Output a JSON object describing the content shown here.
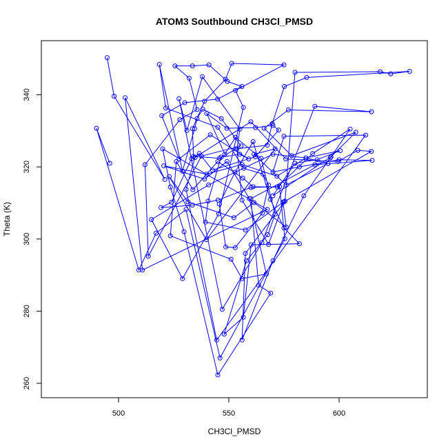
{
  "chart_data": {
    "type": "line",
    "title": "ATOM3 Southbound CH3Cl_PMSD",
    "xlabel": "CH3Cl_PMSD",
    "ylabel": "Theta (K)",
    "xlim": [
      465,
      640
    ],
    "ylim": [
      256,
      355
    ],
    "xticks": [
      500,
      550,
      600
    ],
    "yticks": [
      260,
      280,
      300,
      320,
      340
    ],
    "grid": false,
    "line_color": "#0000ff",
    "marker": "open-circle",
    "series": [
      {
        "values": [
          [
            494.8,
            350.3
          ],
          [
            498.0,
            339.6
          ],
          [
            521.0,
            316.5
          ],
          [
            503.0,
            339.2
          ],
          [
            510.8,
            291.4
          ],
          [
            567.4,
            308.2
          ],
          [
            520.0,
            325.0
          ],
          [
            523.5,
            314.4
          ],
          [
            529.7,
            302.0
          ],
          [
            545.0,
            262.3
          ],
          [
            569.0,
            285.0
          ],
          [
            563.5,
            287.2
          ],
          [
            560.0,
            311.2
          ],
          [
            589.0,
            320.6
          ],
          [
            615.0,
            321.8
          ],
          [
            600.0,
            322.0
          ],
          [
            582.0,
            320.0
          ],
          [
            570.0,
            318.6
          ],
          [
            575.0,
            328.5
          ],
          [
            612.0,
            328.8
          ],
          [
            544.5,
            272.0
          ],
          [
            530.6,
            313.8
          ],
          [
            534.7,
            322.6
          ],
          [
            560.0,
            332.5
          ],
          [
            575.8,
            322.2
          ],
          [
            599.5,
            321.5
          ],
          [
            608.5,
            324.6
          ],
          [
            614.6,
            324.3
          ],
          [
            575.0,
            310.3
          ],
          [
            568.0,
            298.5
          ],
          [
            556.0,
            310.8
          ],
          [
            553.7,
            324.9
          ],
          [
            555.0,
            330.5
          ],
          [
            538.0,
            345.0
          ],
          [
            531.0,
            330.1
          ],
          [
            527.4,
            338.9
          ],
          [
            547.0,
            280.5
          ],
          [
            565.0,
            299.0
          ],
          [
            589.0,
            336.8
          ],
          [
            614.7,
            335.3
          ],
          [
            577.0,
            335.8
          ],
          [
            566.0,
            330.7
          ],
          [
            578.5,
            323.1
          ],
          [
            607.6,
            329.6
          ],
          [
            596.3,
            322.8
          ],
          [
            570.0,
            312.0
          ],
          [
            580.0,
            321.0
          ],
          [
            590.0,
            322.0
          ],
          [
            600.5,
            324.5
          ],
          [
            585.0,
            322.5
          ],
          [
            570.0,
            323.5
          ],
          [
            540.8,
            315.0
          ],
          [
            514.9,
            305.4
          ],
          [
            529.0,
            289.0
          ],
          [
            545.4,
            307.0
          ],
          [
            556.6,
            336.5
          ],
          [
            553.0,
            341.2
          ],
          [
            575.0,
            348.3
          ],
          [
            551.3,
            348.7
          ],
          [
            548.5,
            344.3
          ],
          [
            539.0,
            338.2
          ],
          [
            533.5,
            330.6
          ],
          [
            534.0,
            322.9
          ],
          [
            545.8,
            322.4
          ],
          [
            553.2,
            325.0
          ],
          [
            567.4,
            326.0
          ],
          [
            569.7,
            332.0
          ],
          [
            575.2,
            342.3
          ],
          [
            585.3,
            344.8
          ],
          [
            632.0,
            346.5
          ],
          [
            623.4,
            345.8
          ],
          [
            618.6,
            346.4
          ],
          [
            580.0,
            346.2
          ],
          [
            575.5,
            310.5
          ],
          [
            557.5,
            296.0
          ],
          [
            556.0,
            272.0
          ],
          [
            570.0,
            294.0
          ],
          [
            584.0,
            312.0
          ],
          [
            596.0,
            322.5
          ],
          [
            605.0,
            330.5
          ],
          [
            588.0,
            323.7
          ],
          [
            572.0,
            314.4
          ],
          [
            561.0,
            314.5
          ],
          [
            556.3,
            316.9
          ],
          [
            545.0,
            321.5
          ],
          [
            533.7,
            313.7
          ],
          [
            526.2,
            321.5
          ],
          [
            523.5,
            300.9
          ],
          [
            551.0,
            294.4
          ],
          [
            556.0,
            289.0
          ],
          [
            567.0,
            290.3
          ],
          [
            559.3,
            311.2
          ],
          [
            549.2,
            321.5
          ],
          [
            539.0,
            316.6
          ],
          [
            520.5,
            320.3
          ],
          [
            540.0,
            318.0
          ],
          [
            556.0,
            320.7
          ],
          [
            571.8,
            317.4
          ],
          [
            585.0,
            322.5
          ],
          [
            595.0,
            320.9
          ],
          [
            576.0,
            315.0
          ],
          [
            561.4,
            323.5
          ],
          [
            571.0,
            325.0
          ],
          [
            539.8,
            299.8
          ],
          [
            523.0,
            317.3
          ],
          [
            531.5,
            310.3
          ],
          [
            552.3,
            305.9
          ],
          [
            561.4,
            310.1
          ],
          [
            576.0,
            303.3
          ],
          [
            574.6,
            310.2
          ],
          [
            557.5,
            302.5
          ],
          [
            539.4,
            304.7
          ],
          [
            540.6,
            310.5
          ],
          [
            546.5,
            322.7
          ],
          [
            555.0,
            323.5
          ],
          [
            559.0,
            322.2
          ],
          [
            541.6,
            328.9
          ],
          [
            527.4,
            322.2
          ],
          [
            519.6,
            334.2
          ],
          [
            530.0,
            337.8
          ],
          [
            544.9,
            338.8
          ],
          [
            555.9,
            342.3
          ],
          [
            549.3,
            343.7
          ],
          [
            541.0,
            348.3
          ],
          [
            533.5,
            348.0
          ],
          [
            525.6,
            348.0
          ],
          [
            532.0,
            344.6
          ],
          [
            535.6,
            335.9
          ],
          [
            527.8,
            333.1
          ],
          [
            512.0,
            320.6
          ],
          [
            513.5,
            295.2
          ],
          [
            537.6,
            323.0
          ],
          [
            555.5,
            325.8
          ],
          [
            546.6,
            333.4
          ],
          [
            538.2,
            336.0
          ],
          [
            535.6,
            333.4
          ],
          [
            534.5,
            330.6
          ],
          [
            529.0,
            318.8
          ],
          [
            518.5,
            348.4
          ],
          [
            521.4,
            336.3
          ],
          [
            545.0,
            331.0
          ],
          [
            556.8,
            319.6
          ],
          [
            565.5,
            318.0
          ],
          [
            568.0,
            315.0
          ],
          [
            565.2,
            307.2
          ],
          [
            552.9,
            297.6
          ],
          [
            548.6,
            297.8
          ],
          [
            545.7,
            309.7
          ],
          [
            552.8,
            318.5
          ],
          [
            561.0,
            327.0
          ],
          [
            568.8,
            311.0
          ],
          [
            575.0,
            303.1
          ],
          [
            582.0,
            298.7
          ],
          [
            560.1,
            298.4
          ],
          [
            556.6,
            278.3
          ],
          [
            547.9,
            273.6
          ],
          [
            558.0,
            294.0
          ],
          [
            567.7,
            301.2
          ],
          [
            571.0,
            306.9
          ],
          [
            564.6,
            322.4
          ],
          [
            553.0,
            328.2
          ],
          [
            548.2,
            323.5
          ],
          [
            540.0,
            334.8
          ],
          [
            549.1,
            330.7
          ],
          [
            562.1,
            330.9
          ],
          [
            570.0,
            331.5
          ],
          [
            572.6,
            330.2
          ],
          [
            562.0,
            322.8
          ],
          [
            542.6,
            319.1
          ],
          [
            536.6,
            323.7
          ],
          [
            533.1,
            322.3
          ],
          [
            524.0,
            310.2
          ],
          [
            519.2,
            308.7
          ],
          [
            533.5,
            309.4
          ],
          [
            545.1,
            310.8
          ],
          [
            560.0,
            314.3
          ],
          [
            573.0,
            314.5
          ],
          [
            575.4,
            300.1
          ],
          [
            546.0,
            267.0
          ],
          [
            530.6,
            308.2
          ],
          [
            517.0,
            301.6
          ],
          [
            509.2,
            291.4
          ],
          [
            490.0,
            330.7
          ],
          [
            496.0,
            321.0
          ]
        ]
      }
    ]
  }
}
